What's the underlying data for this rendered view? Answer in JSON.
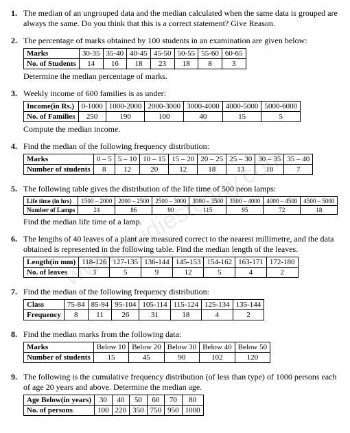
{
  "watermark": "www.studiestoday.com",
  "q1": {
    "num": "1.",
    "text": "The median of an ungrouped data and the median calculated when the same data is grouped are always the same. Do you think that this is a correct statement? Give Reason."
  },
  "q2": {
    "num": "2.",
    "text": "The percentage of marks obtained by 100 students in an examination are given below:",
    "row1_label": "Marks",
    "row1": [
      "30-35",
      "35-40",
      "40-45",
      "45-50",
      "50-55",
      "55-60",
      "60-65"
    ],
    "row2_label": "No. of Students",
    "row2": [
      "14",
      "16",
      "18",
      "23",
      "18",
      "8",
      "3"
    ],
    "after": "Determine the median percentage of marks."
  },
  "q3": {
    "num": "3.",
    "text": "Weekly income of 600 families is as under:",
    "row1_label": "Income(in Rs.)",
    "row1": [
      "0-1000",
      "1000-2000",
      "2000-3000",
      "3000-4000",
      "4000-5000",
      "5000-6000"
    ],
    "row2_label": "No. of Families",
    "row2": [
      "250",
      "190",
      "100",
      "40",
      "15",
      "5"
    ],
    "after": "Compute the median income."
  },
  "q4": {
    "num": "4.",
    "text": "Find the median of the following frequency distribution:",
    "row1_label": "Marks",
    "row1": [
      "0 – 5",
      "5 – 10",
      "10 – 15",
      "15 – 20",
      "20 – 25",
      "25 – 30",
      "30 – 35",
      "35 – 40"
    ],
    "row2_label": "Number of students",
    "row2": [
      "8",
      "12",
      "20",
      "12",
      "18",
      "13",
      "10",
      "7"
    ]
  },
  "q5": {
    "num": "5.",
    "text": "The following table gives the distribution of the life time of 500 neon lamps:",
    "row1_label": "Life time (in hrs)",
    "row1": [
      "1500 – 2000",
      "2000 – 2500",
      "2500 – 3000",
      "3000 – 3500",
      "3500 – 4000",
      "4000 – 4500",
      "4500 – 5000"
    ],
    "row2_label": "Number of Lamps",
    "row2": [
      "24",
      "86",
      "90",
      "115",
      "95",
      "72",
      "18"
    ],
    "after": "Find the median life time of a lamp."
  },
  "q6": {
    "num": "6.",
    "text": "The lengths of 40 leaves of a plant are measured correct to the nearest millimetre, and the data obtained is represented in the following table. Find the median length of the leaves.",
    "row1_label": "Length(in mm)",
    "row1": [
      "118-126",
      "127-135",
      "136-144",
      "145-153",
      "154-162",
      "163-171",
      "172-180"
    ],
    "row2_label": "No. of leaves",
    "row2": [
      "3",
      "5",
      "9",
      "12",
      "5",
      "4",
      "2"
    ]
  },
  "q7": {
    "num": "7.",
    "text": "Find the median of the following frequency distribution:",
    "row1_label": "Class",
    "row1": [
      "75-84",
      "85-94",
      "95-104",
      "105-114",
      "115-124",
      "125-134",
      "135-144"
    ],
    "row2_label": "Frequency",
    "row2": [
      "8",
      "11",
      "26",
      "31",
      "18",
      "4",
      "2"
    ]
  },
  "q8": {
    "num": "8.",
    "text": "Find the median marks from the following data:",
    "row1_label": "Marks",
    "row1": [
      "Below 10",
      "Below 20",
      "Below 30",
      "Below 40",
      "Below 50"
    ],
    "row2_label": "Number of students",
    "row2": [
      "15",
      "45",
      "90",
      "102",
      "120"
    ]
  },
  "q9": {
    "num": "9.",
    "text": "The following is the cumulative frequency distribution (of less than type) of 1000 persons each of age 20 years and above. Determine the median age.",
    "row1_label": "Age Below(in years)",
    "row1": [
      "30",
      "40",
      "50",
      "60",
      "70",
      "80"
    ],
    "row2_label": "No. of persons",
    "row2": [
      "100",
      "220",
      "350",
      "750",
      "950",
      "1000"
    ]
  }
}
